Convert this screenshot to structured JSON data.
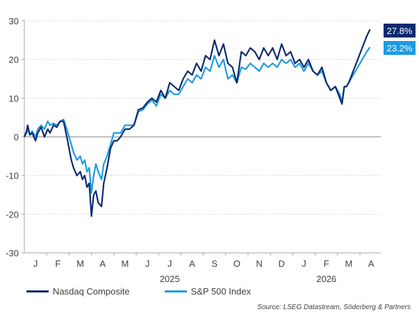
{
  "chart_data": {
    "type": "line",
    "title": "",
    "xlabel": "",
    "ylabel": "",
    "ylim": [
      -30,
      30
    ],
    "yticks": [
      30,
      20,
      10,
      0,
      -10,
      -20,
      -30
    ],
    "month_labels": [
      "J",
      "F",
      "M",
      "A",
      "M",
      "J",
      "J",
      "A",
      "S",
      "O",
      "N",
      "D",
      "J",
      "F",
      "M",
      "A"
    ],
    "year_labels": [
      {
        "label": "2025",
        "month_index": 6.5
      },
      {
        "label": "2026",
        "month_index": 13.5
      }
    ],
    "grid": true,
    "legend_position": "bottom-left",
    "x_units": "months since start (0 = early Jan 2025)",
    "series": [
      {
        "name": "Nasdaq Composite",
        "color": "#0b2a6e",
        "end_label": "27.8%",
        "x": [
          0,
          0.1,
          0.15,
          0.25,
          0.35,
          0.5,
          0.6,
          0.75,
          0.9,
          1.05,
          1.15,
          1.3,
          1.45,
          1.6,
          1.75,
          1.9,
          2.0,
          2.1,
          2.2,
          2.35,
          2.5,
          2.6,
          2.7,
          2.8,
          2.9,
          3.0,
          3.1,
          3.2,
          3.3,
          3.45,
          3.55,
          3.7,
          3.85,
          4.0,
          4.15,
          4.3,
          4.5,
          4.7,
          4.9,
          5.1,
          5.3,
          5.5,
          5.7,
          5.9,
          6.1,
          6.3,
          6.5,
          6.7,
          6.9,
          7.1,
          7.3,
          7.5,
          7.7,
          7.9,
          8.1,
          8.3,
          8.5,
          8.7,
          8.9,
          9.1,
          9.3,
          9.5,
          9.7,
          9.9,
          10.1,
          10.3,
          10.5,
          10.7,
          10.9,
          11.1,
          11.3,
          11.5,
          11.7,
          11.9,
          12.1,
          12.3,
          12.5,
          12.7,
          12.9,
          13.1,
          13.3,
          13.5,
          13.7,
          13.9,
          14.1,
          14.2,
          14.3,
          14.4,
          14.5,
          14.7,
          14.9,
          15.1,
          15.3,
          15.45
        ],
        "values": [
          0,
          1.5,
          3,
          0.5,
          1,
          -1,
          1,
          2.5,
          0,
          2,
          1,
          3,
          2.5,
          4,
          4,
          0,
          -3,
          -6,
          -8,
          -10,
          -9,
          -11,
          -10,
          -13,
          -12,
          -20.5,
          -15,
          -14,
          -17,
          -18,
          -12,
          -8,
          -3,
          -1,
          -1,
          0,
          2,
          2,
          3,
          7,
          7.5,
          9,
          10,
          9,
          12,
          10,
          14,
          13,
          12,
          15,
          17,
          16,
          19,
          17,
          21,
          20,
          25,
          21,
          24,
          19,
          18,
          14,
          22,
          21,
          23,
          22,
          20,
          23,
          21,
          23,
          20,
          24,
          21,
          22,
          19,
          20,
          18,
          20,
          17,
          16,
          18,
          14,
          12,
          13,
          10,
          8.5,
          13,
          13,
          14,
          17,
          20,
          23,
          26,
          27.8
        ]
      },
      {
        "name": "S&P 500 Index",
        "color": "#1e9be0",
        "end_label": "23.2%",
        "x": [
          0,
          0.1,
          0.15,
          0.25,
          0.35,
          0.5,
          0.6,
          0.75,
          0.9,
          1.05,
          1.15,
          1.3,
          1.45,
          1.6,
          1.75,
          1.9,
          2.0,
          2.1,
          2.2,
          2.35,
          2.5,
          2.6,
          2.7,
          2.8,
          2.9,
          3.0,
          3.1,
          3.2,
          3.3,
          3.45,
          3.55,
          3.7,
          3.85,
          4.0,
          4.15,
          4.3,
          4.5,
          4.7,
          4.9,
          5.1,
          5.3,
          5.5,
          5.7,
          5.9,
          6.1,
          6.3,
          6.5,
          6.7,
          6.9,
          7.1,
          7.3,
          7.5,
          7.7,
          7.9,
          8.1,
          8.3,
          8.5,
          8.7,
          8.9,
          9.1,
          9.3,
          9.5,
          9.7,
          9.9,
          10.1,
          10.3,
          10.5,
          10.7,
          10.9,
          11.1,
          11.3,
          11.5,
          11.7,
          11.9,
          12.1,
          12.3,
          12.5,
          12.7,
          12.9,
          13.1,
          13.3,
          13.5,
          13.7,
          13.9,
          14.1,
          14.2,
          14.3,
          14.4,
          14.5,
          14.7,
          14.9,
          15.1,
          15.3,
          15.45
        ],
        "values": [
          0,
          1,
          2,
          0.5,
          1.5,
          0,
          2,
          3,
          2,
          4,
          3,
          3.5,
          3,
          4,
          4.5,
          2,
          0,
          -2,
          -4,
          -6,
          -5,
          -7,
          -6,
          -9,
          -8,
          -14.5,
          -10,
          -7,
          -9,
          -11,
          -7,
          -5,
          -2,
          1,
          1,
          1,
          3,
          3,
          3,
          6.5,
          7,
          8.5,
          9.5,
          8,
          11,
          10,
          12,
          11,
          11,
          13,
          15,
          14,
          16,
          15,
          18,
          17,
          21,
          18,
          20,
          15,
          16,
          14,
          18,
          17.5,
          19,
          18,
          17,
          19,
          18,
          19,
          18,
          20,
          19,
          20,
          18,
          19,
          17,
          19,
          17,
          16,
          17,
          14,
          12,
          13,
          11,
          9,
          13,
          13,
          14,
          16,
          18,
          20,
          22,
          23.2
        ]
      }
    ]
  },
  "legend": {
    "items": [
      {
        "label": "Nasdaq Composite",
        "color": "#0b2a6e"
      },
      {
        "label": "S&P 500 Index",
        "color": "#1e9be0"
      }
    ]
  },
  "source": "Source: LSEG Datastream, Söderberg & Partners"
}
